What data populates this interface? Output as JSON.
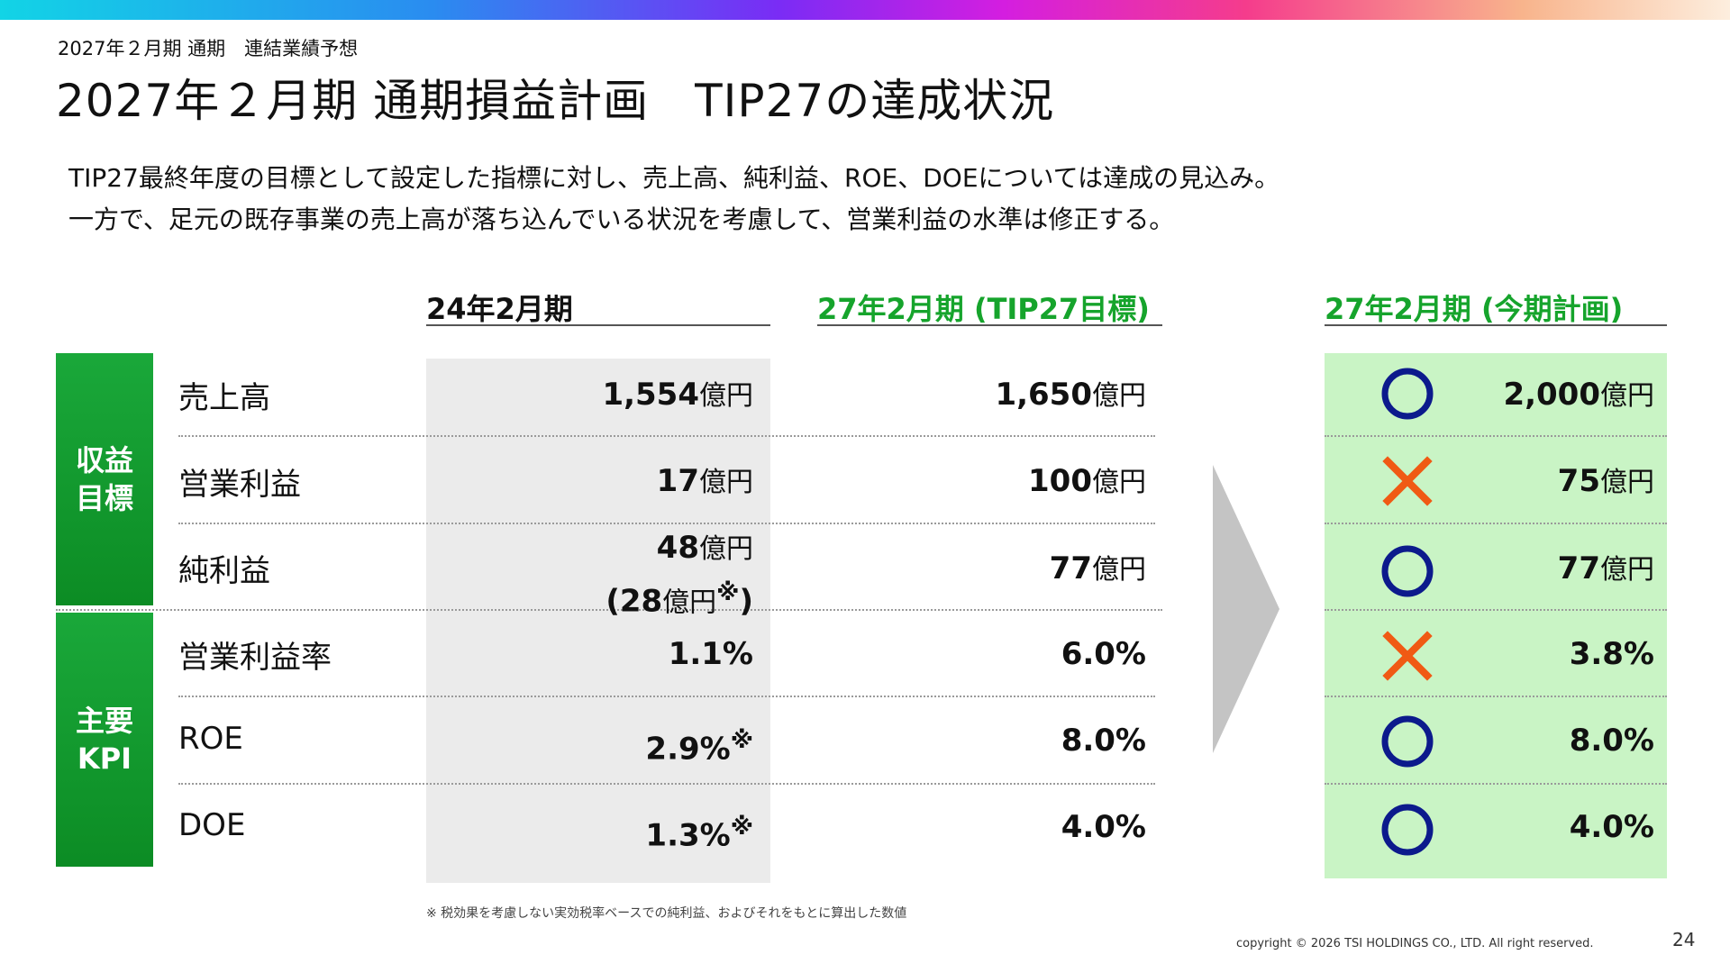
{
  "header": {
    "subtitle": "2027年２月期 通期　連結業績予想",
    "title": "2027年２月期 通期損益計画　TIP27の達成状況"
  },
  "lead": {
    "line1": "TIP27最終年度の目標として設定した指標に対し、売上高、純利益、ROE、DOEについては達成の見込み。",
    "line2": "一方で、足元の既存事業の売上高が落ち込んでいる状況を考慮して、営業利益の水準は修正する。"
  },
  "columns": {
    "c1": "24年2月期",
    "c2": "27年2月期 (TIP27目標)",
    "c3": "27年2月期 (今期計画)"
  },
  "groups": {
    "g1_line1": "収益",
    "g1_line2": "目標",
    "g2_line1": "主要",
    "g2_line2": "KPI"
  },
  "unit": "億円",
  "note_mark": "※",
  "status_colors": {
    "achieved": "#0c1a8c",
    "not_achieved": "#f05a14",
    "accent": "#16a42c"
  },
  "rows": [
    {
      "label": "売上高",
      "v1": "1,554",
      "v2": "1,650",
      "v3": "2,000",
      "status": "achieved",
      "status_icon": "circle-icon"
    },
    {
      "label": "営業利益",
      "v1": "17",
      "v2": "100",
      "v3": "75",
      "status": "not-achieved",
      "status_icon": "cross-icon"
    },
    {
      "label": "純利益",
      "v1": "48",
      "v1_sub_open": "(28",
      "v1_sub_close": ")",
      "v2": "77",
      "v3": "77",
      "status": "achieved",
      "status_icon": "circle-icon"
    },
    {
      "label": "営業利益率",
      "v1": "1.1%",
      "v2": "6.0%",
      "v3": "3.8%",
      "status": "not-achieved",
      "status_icon": "cross-icon"
    },
    {
      "label": "ROE",
      "v1": "2.9%",
      "v2": "8.0%",
      "v3": "8.0%",
      "status": "achieved",
      "status_icon": "circle-icon"
    },
    {
      "label": "DOE",
      "v1": "1.3%",
      "v2": "4.0%",
      "v3": "4.0%",
      "status": "achieved",
      "status_icon": "circle-icon"
    }
  ],
  "footnote": "※ 税効果を考慮しない実効税率ベースでの純利益、およびそれをもとに算出した数値",
  "copyright": "copyright © 2026 TSI HOLDINGS CO., LTD. All right reserved.",
  "page_number": "24"
}
